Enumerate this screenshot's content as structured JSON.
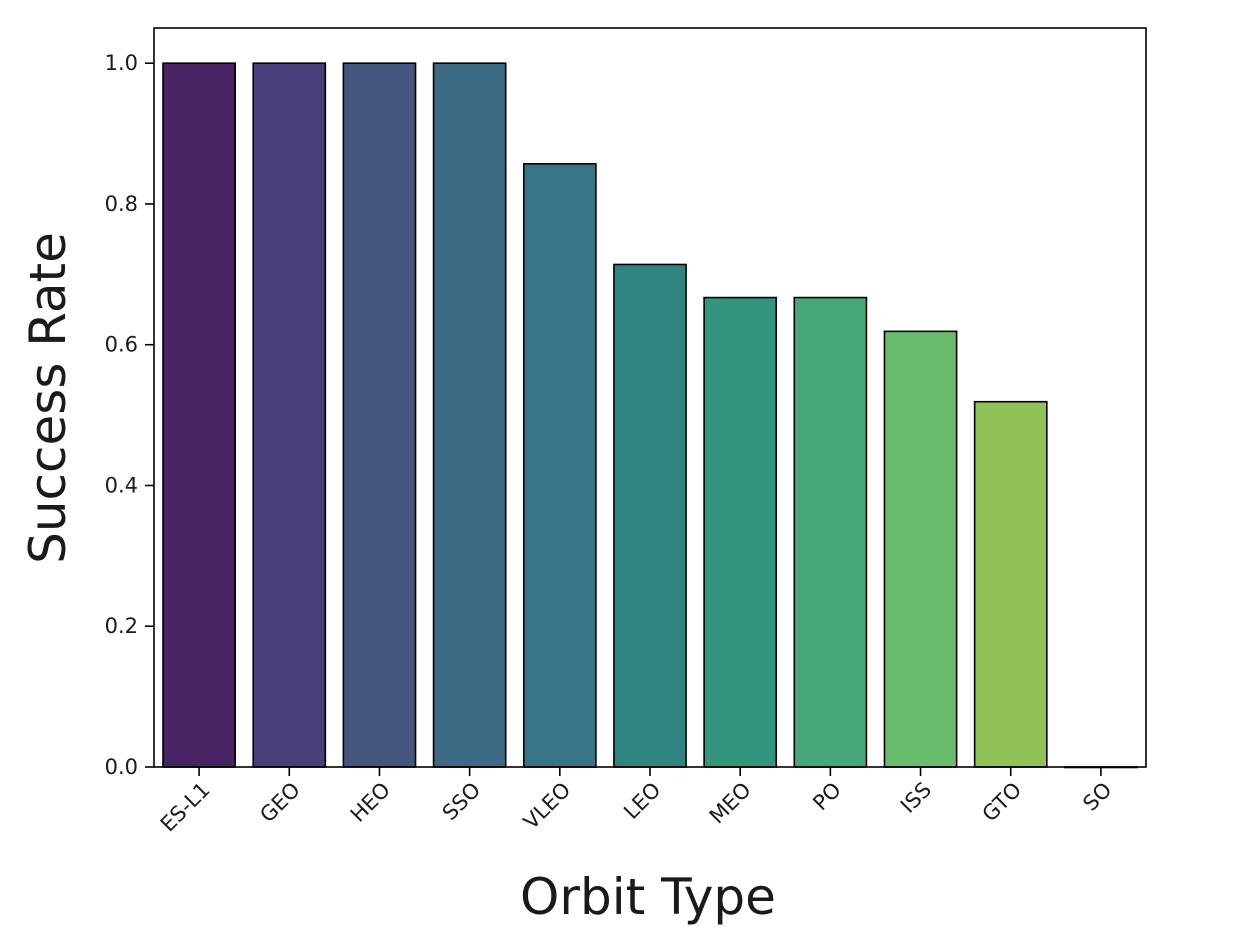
{
  "chart_data": {
    "type": "bar",
    "title": "",
    "xlabel": "Orbit Type",
    "ylabel": "Success Rate",
    "categories": [
      "ES-L1",
      "GEO",
      "HEO",
      "SSO",
      "VLEO",
      "LEO",
      "MEO",
      "PO",
      "ISS",
      "GTO",
      "SO"
    ],
    "values": [
      1.0,
      1.0,
      1.0,
      1.0,
      0.857,
      0.714,
      0.667,
      0.667,
      0.619,
      0.519,
      0.0
    ],
    "colors": [
      "#482465",
      "#4a3f7a",
      "#44567e",
      "#3d6b85",
      "#357586",
      "#2e8580",
      "#32967e",
      "#46a878",
      "#6abc6d",
      "#8fc356",
      "#bdd93a"
    ],
    "yticks": [
      "0.0",
      "0.2",
      "0.4",
      "0.6",
      "0.8",
      "1.0"
    ],
    "ytick_values": [
      0.0,
      0.2,
      0.4,
      0.6,
      0.8,
      1.0
    ],
    "ylim": [
      0,
      1.05
    ],
    "grid": false,
    "bar_edge_color": "#000000"
  }
}
